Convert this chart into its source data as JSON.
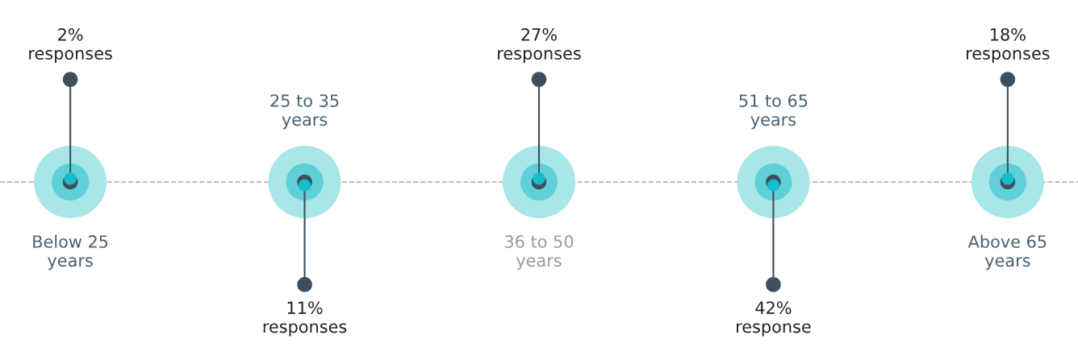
{
  "chart_data": {
    "type": "other",
    "categories": [
      "Below 25\nyears",
      "25 to 35\nyears",
      "36 to 50\nyears",
      "51 to 65\nyears",
      "Above 65\nyears"
    ],
    "values": [
      2,
      11,
      27,
      42,
      18
    ],
    "value_labels": [
      "2%\nresponses",
      "11%\nresponses",
      "27%\nresponses",
      "42%\nresponse",
      "18%\nresponses"
    ],
    "color": "#3d4f5f"
  }
}
